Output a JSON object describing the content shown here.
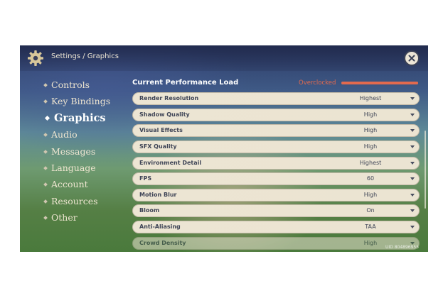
{
  "header": {
    "breadcrumb": "Settings / Graphics",
    "close_icon": "close-icon"
  },
  "sidebar": {
    "items": [
      {
        "label": "Controls",
        "active": false
      },
      {
        "label": "Key Bindings",
        "active": false
      },
      {
        "label": "Graphics",
        "active": true
      },
      {
        "label": "Audio",
        "active": false
      },
      {
        "label": "Messages",
        "active": false
      },
      {
        "label": "Language",
        "active": false
      },
      {
        "label": "Account",
        "active": false
      },
      {
        "label": "Resources",
        "active": false
      },
      {
        "label": "Other",
        "active": false
      }
    ]
  },
  "performance": {
    "title": "Current Performance Load",
    "status": "Overclocked",
    "load_fraction": 1.0,
    "status_color": "#e36a4e"
  },
  "settings": [
    {
      "label": "Render Resolution",
      "value": "Highest"
    },
    {
      "label": "Shadow Quality",
      "value": "High"
    },
    {
      "label": "Visual Effects",
      "value": "High"
    },
    {
      "label": "SFX Quality",
      "value": "High"
    },
    {
      "label": "Environment Detail",
      "value": "Highest"
    },
    {
      "label": "FPS",
      "value": "60"
    },
    {
      "label": "Motion Blur",
      "value": "High"
    },
    {
      "label": "Bloom",
      "value": "On"
    },
    {
      "label": "Anti-Aliasing",
      "value": "TAA"
    },
    {
      "label": "Crowd Density",
      "value": "High"
    }
  ],
  "footer": {
    "uid": "UID 804896955"
  }
}
